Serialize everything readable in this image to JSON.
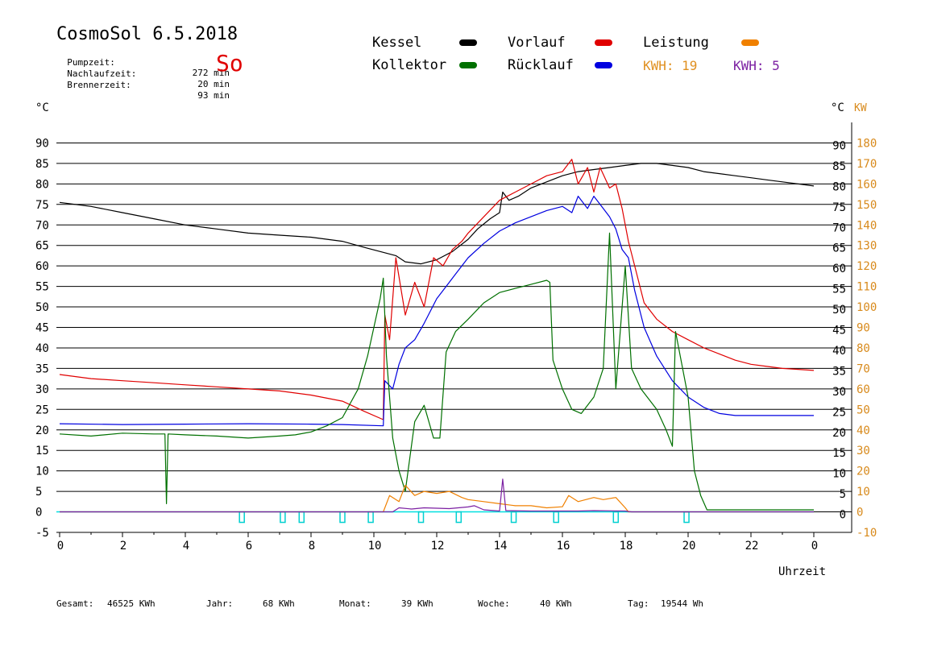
{
  "header": {
    "title": "CosmoSol 6.5.2018",
    "info": [
      {
        "label": "Pumpzeit:",
        "value": "272 min"
      },
      {
        "label": "Nachlaufzeit:",
        "value": "20 min"
      },
      {
        "label": "Brennerzeit:",
        "value": "93 min"
      }
    ],
    "day": "So"
  },
  "legend": {
    "items": [
      {
        "label": "Kessel",
        "color": "#000000"
      },
      {
        "label": "Vorlauf",
        "color": "#e00000"
      },
      {
        "label": "Leistung",
        "color": "#f08000"
      },
      {
        "label": "Kollektor",
        "color": "#007000"
      },
      {
        "label": "Rücklauf",
        "color": "#0000e0"
      }
    ],
    "kwh_orange": "KWH: 19",
    "kwh_purple": "KWH: 5",
    "kwh_orange_color": "#e09020",
    "kwh_purple_color": "#7b1fa2"
  },
  "footer": {
    "items": [
      {
        "label": "Gesamt:",
        "value": "46525 KWh"
      },
      {
        "label": "Jahr:",
        "value": "68 KWh"
      },
      {
        "label": "Monat:",
        "value": "39 KWh"
      },
      {
        "label": "Woche:",
        "value": "40 KWh"
      },
      {
        "label": "Tag:",
        "value": "19544 Wh"
      }
    ]
  },
  "chart_data": {
    "type": "line",
    "xlabel": "Uhrzeit",
    "ylabel_left": "°C",
    "ylabel_right_temp": "°C",
    "ylabel_right_power": "KW",
    "xlim": [
      0,
      24
    ],
    "ylim": [
      -5,
      95
    ],
    "y2lim": [
      -10,
      190
    ],
    "grid": true,
    "x_ticks": [
      "0",
      "2",
      "4",
      "6",
      "8",
      "10",
      "12",
      "14",
      "16",
      "18",
      "20",
      "22",
      "0"
    ],
    "y_ticks": [
      "-5",
      "0",
      "5",
      "10",
      "15",
      "20",
      "25",
      "30",
      "35",
      "40",
      "45",
      "50",
      "55",
      "60",
      "65",
      "70",
      "75",
      "80",
      "85",
      "90"
    ],
    "y_right_ticks": [
      "0",
      "5",
      "10",
      "15",
      "20",
      "25",
      "30",
      "35",
      "40",
      "45",
      "50",
      "55",
      "60",
      "65",
      "70",
      "75",
      "80",
      "85",
      "90"
    ],
    "y2_ticks": [
      "-10",
      "0",
      "10",
      "20",
      "30",
      "40",
      "50",
      "60",
      "70",
      "80",
      "90",
      "100",
      "110",
      "120",
      "130",
      "140",
      "150",
      "160",
      "170",
      "180"
    ],
    "pump_markers_x": [
      5.8,
      7.1,
      7.7,
      9.0,
      9.9,
      11.5,
      12.7,
      14.45,
      15.8,
      17.7,
      19.95
    ],
    "series": [
      {
        "name": "Kessel",
        "color": "#000000",
        "points": [
          [
            0,
            75.5
          ],
          [
            1,
            74.5
          ],
          [
            2,
            73
          ],
          [
            3,
            71.5
          ],
          [
            4,
            70
          ],
          [
            5,
            69
          ],
          [
            6,
            68
          ],
          [
            7,
            67.5
          ],
          [
            8,
            67
          ],
          [
            9,
            66
          ],
          [
            9.7,
            64.5
          ],
          [
            10.2,
            63.5
          ],
          [
            10.7,
            62.5
          ],
          [
            11,
            61
          ],
          [
            11.5,
            60.5
          ],
          [
            12,
            61.5
          ],
          [
            12.5,
            63.5
          ],
          [
            13,
            66.5
          ],
          [
            13.3,
            69
          ],
          [
            13.7,
            71.5
          ],
          [
            14,
            73
          ],
          [
            14.1,
            78
          ],
          [
            14.3,
            76
          ],
          [
            14.6,
            77
          ],
          [
            15,
            79
          ],
          [
            15.5,
            80.5
          ],
          [
            16,
            82
          ],
          [
            16.5,
            83
          ],
          [
            17,
            83.5
          ],
          [
            17.5,
            84
          ],
          [
            18,
            84.5
          ],
          [
            18.5,
            85
          ],
          [
            19,
            85
          ],
          [
            19.5,
            84.5
          ],
          [
            20,
            84
          ],
          [
            20.5,
            83
          ],
          [
            21,
            82.5
          ],
          [
            21.5,
            82
          ],
          [
            22,
            81.5
          ],
          [
            22.5,
            81
          ],
          [
            23,
            80.5
          ],
          [
            24,
            79.5
          ]
        ]
      },
      {
        "name": "Vorlauf",
        "color": "#e00000",
        "points": [
          [
            0,
            33.5
          ],
          [
            1,
            32.5
          ],
          [
            2,
            32
          ],
          [
            3,
            31.5
          ],
          [
            4,
            31
          ],
          [
            5,
            30.5
          ],
          [
            6,
            30
          ],
          [
            7,
            29.5
          ],
          [
            8,
            28.5
          ],
          [
            9,
            27
          ],
          [
            9.7,
            24.5
          ],
          [
            10.3,
            22.5
          ],
          [
            10.35,
            48
          ],
          [
            10.5,
            42
          ],
          [
            10.7,
            62
          ],
          [
            11,
            48
          ],
          [
            11.3,
            56
          ],
          [
            11.6,
            50
          ],
          [
            11.9,
            62
          ],
          [
            12.2,
            60
          ],
          [
            12.5,
            64
          ],
          [
            12.8,
            66
          ],
          [
            13,
            68
          ],
          [
            13.5,
            72
          ],
          [
            14,
            76
          ],
          [
            14.5,
            78
          ],
          [
            15,
            80
          ],
          [
            15.5,
            82
          ],
          [
            16,
            83
          ],
          [
            16.3,
            86
          ],
          [
            16.5,
            80
          ],
          [
            16.8,
            84
          ],
          [
            17,
            78
          ],
          [
            17.2,
            84
          ],
          [
            17.5,
            79
          ],
          [
            17.7,
            80
          ],
          [
            17.9,
            74
          ],
          [
            18.1,
            66
          ],
          [
            18.3,
            60
          ],
          [
            18.6,
            51
          ],
          [
            19,
            47
          ],
          [
            19.5,
            44
          ],
          [
            20,
            42
          ],
          [
            20.5,
            40
          ],
          [
            21,
            38.5
          ],
          [
            21.5,
            37
          ],
          [
            22,
            36
          ],
          [
            22.5,
            35.5
          ],
          [
            23,
            35
          ],
          [
            24,
            34.5
          ]
        ]
      },
      {
        "name": "Rücklauf",
        "color": "#0000e0",
        "points": [
          [
            0,
            21.5
          ],
          [
            2,
            21.3
          ],
          [
            4,
            21.4
          ],
          [
            6,
            21.5
          ],
          [
            8,
            21.4
          ],
          [
            9,
            21.3
          ],
          [
            10.3,
            21
          ],
          [
            10.35,
            32
          ],
          [
            10.6,
            30
          ],
          [
            10.8,
            36
          ],
          [
            11,
            40
          ],
          [
            11.3,
            42
          ],
          [
            11.6,
            46
          ],
          [
            12,
            52
          ],
          [
            12.3,
            55
          ],
          [
            12.6,
            58
          ],
          [
            13,
            62
          ],
          [
            13.5,
            65.5
          ],
          [
            14,
            68.5
          ],
          [
            14.5,
            70.5
          ],
          [
            15,
            72
          ],
          [
            15.5,
            73.5
          ],
          [
            16,
            74.5
          ],
          [
            16.3,
            73
          ],
          [
            16.5,
            77
          ],
          [
            16.8,
            74
          ],
          [
            17,
            77
          ],
          [
            17.3,
            74
          ],
          [
            17.5,
            72
          ],
          [
            17.7,
            69
          ],
          [
            17.9,
            64
          ],
          [
            18.1,
            62
          ],
          [
            18.3,
            54
          ],
          [
            18.6,
            45
          ],
          [
            19,
            38
          ],
          [
            19.5,
            32
          ],
          [
            20,
            28
          ],
          [
            20.5,
            25.5
          ],
          [
            21,
            24
          ],
          [
            21.5,
            23.5
          ],
          [
            22,
            23.5
          ],
          [
            23,
            23.5
          ],
          [
            24,
            23.5
          ]
        ]
      },
      {
        "name": "Kollektor",
        "color": "#007000",
        "points": [
          [
            0,
            19
          ],
          [
            1,
            18.5
          ],
          [
            2,
            19.2
          ],
          [
            3,
            19
          ],
          [
            3.35,
            19
          ],
          [
            3.4,
            2
          ],
          [
            3.45,
            19
          ],
          [
            4,
            18.8
          ],
          [
            5,
            18.5
          ],
          [
            6,
            18
          ],
          [
            7,
            18.5
          ],
          [
            7.5,
            18.8
          ],
          [
            8,
            19.5
          ],
          [
            8.5,
            21
          ],
          [
            9,
            23
          ],
          [
            9.5,
            30
          ],
          [
            9.8,
            38
          ],
          [
            10,
            45
          ],
          [
            10.2,
            52
          ],
          [
            10.3,
            57
          ],
          [
            10.4,
            38
          ],
          [
            10.6,
            18
          ],
          [
            10.8,
            10
          ],
          [
            11,
            5
          ],
          [
            11.3,
            22
          ],
          [
            11.6,
            26
          ],
          [
            11.9,
            18
          ],
          [
            12.1,
            18
          ],
          [
            12.3,
            39
          ],
          [
            12.6,
            44
          ],
          [
            13,
            47
          ],
          [
            13.5,
            51
          ],
          [
            14,
            53.5
          ],
          [
            14.5,
            54.5
          ],
          [
            15,
            55.5
          ],
          [
            15.5,
            56.5
          ],
          [
            15.6,
            56
          ],
          [
            15.7,
            37
          ],
          [
            16,
            30
          ],
          [
            16.3,
            25
          ],
          [
            16.6,
            24
          ],
          [
            17,
            28
          ],
          [
            17.3,
            35
          ],
          [
            17.5,
            68
          ],
          [
            17.7,
            30
          ],
          [
            18,
            60
          ],
          [
            18.2,
            35
          ],
          [
            18.5,
            30
          ],
          [
            19,
            25
          ],
          [
            19.3,
            20
          ],
          [
            19.5,
            16
          ],
          [
            19.6,
            44
          ],
          [
            20,
            28
          ],
          [
            20.2,
            10
          ],
          [
            20.4,
            4
          ],
          [
            20.6,
            0.5
          ],
          [
            21,
            0.5
          ],
          [
            22,
            0.5
          ],
          [
            23,
            0.5
          ],
          [
            24,
            0.5
          ]
        ]
      },
      {
        "name": "Leistung",
        "color": "#f08000",
        "axis": "right",
        "points": [
          [
            0,
            0
          ],
          [
            10.3,
            0
          ],
          [
            10.5,
            8
          ],
          [
            10.8,
            5
          ],
          [
            11,
            13
          ],
          [
            11.3,
            8
          ],
          [
            11.6,
            10
          ],
          [
            12,
            9
          ],
          [
            12.4,
            10
          ],
          [
            12.8,
            7
          ],
          [
            13,
            6
          ],
          [
            13.5,
            5
          ],
          [
            14,
            4
          ],
          [
            14.5,
            3
          ],
          [
            15,
            3
          ],
          [
            15.5,
            2
          ],
          [
            16,
            2.5
          ],
          [
            16.2,
            8
          ],
          [
            16.5,
            5
          ],
          [
            17,
            7
          ],
          [
            17.3,
            6
          ],
          [
            17.7,
            7
          ],
          [
            18,
            2
          ],
          [
            18.1,
            0
          ],
          [
            24,
            0
          ]
        ]
      },
      {
        "name": "KWH",
        "color": "#7b1fa2",
        "points": [
          [
            0,
            0
          ],
          [
            10.6,
            0
          ],
          [
            10.8,
            1
          ],
          [
            11.2,
            0.7
          ],
          [
            11.6,
            1
          ],
          [
            12.4,
            0.8
          ],
          [
            13,
            1.2
          ],
          [
            13.2,
            1.5
          ],
          [
            13.5,
            0.5
          ],
          [
            14,
            0.2
          ],
          [
            14.1,
            8
          ],
          [
            14.2,
            0.3
          ],
          [
            15,
            0.2
          ],
          [
            16,
            0.2
          ],
          [
            16.5,
            0.2
          ],
          [
            17,
            0.3
          ],
          [
            18,
            0.2
          ],
          [
            18.2,
            0
          ],
          [
            24,
            0
          ]
        ]
      }
    ]
  }
}
